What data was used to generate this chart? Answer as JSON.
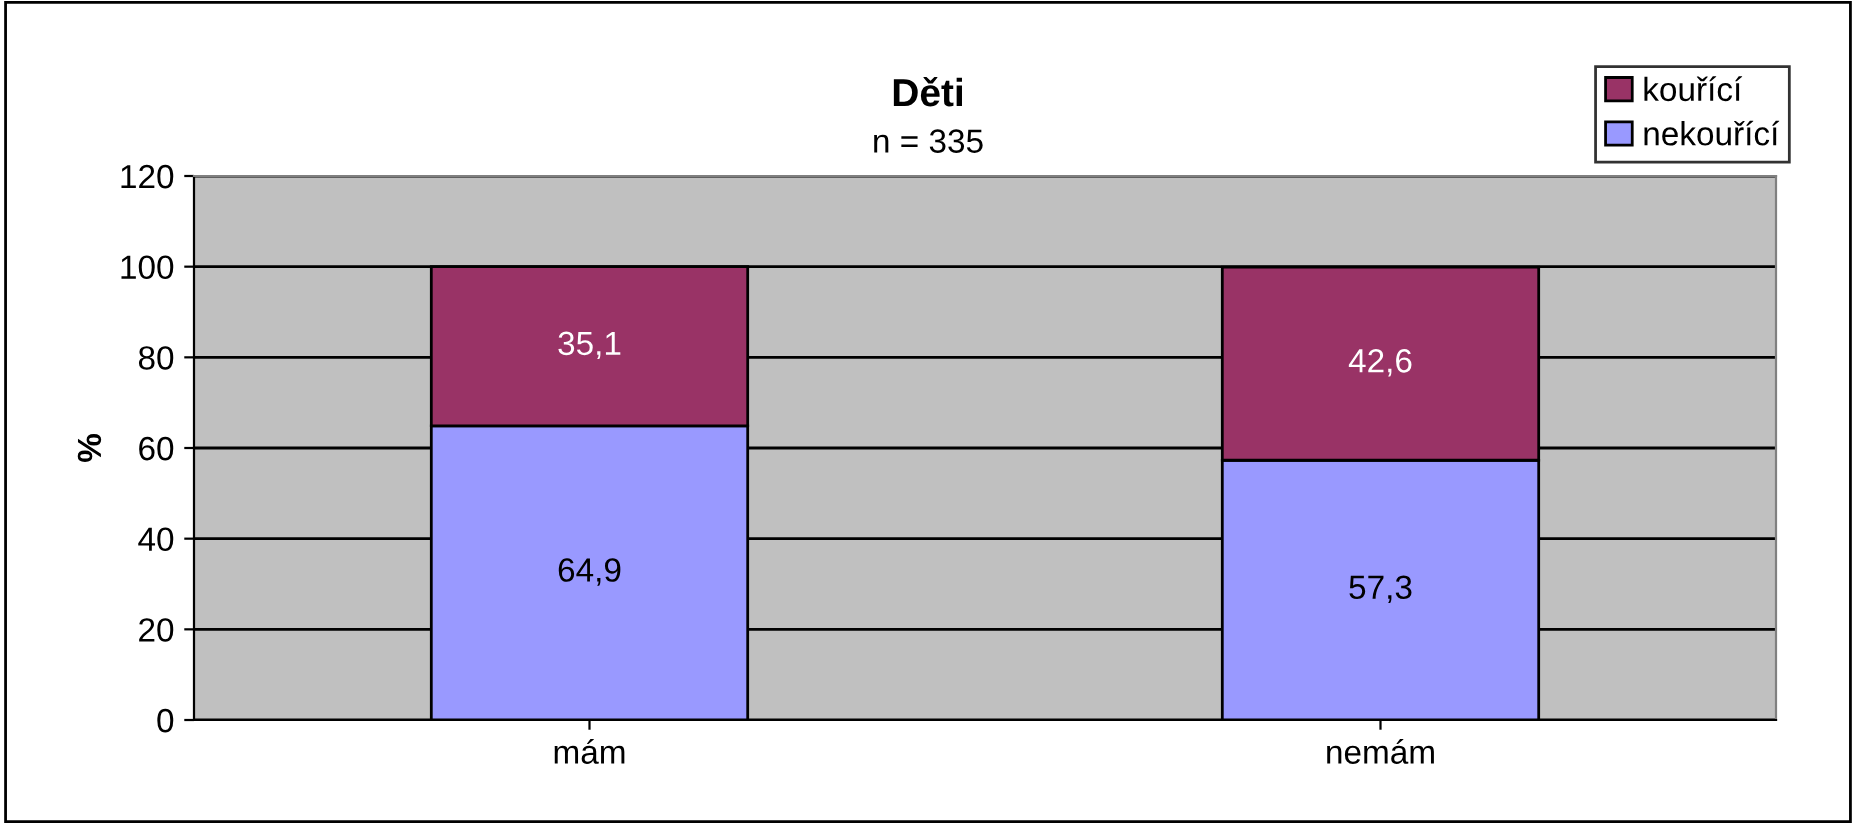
{
  "chart_data": {
    "type": "bar",
    "title": "Děti",
    "subtitle": "n = 335",
    "ylabel": "%",
    "categories": [
      "mám",
      "nemám"
    ],
    "stacked": true,
    "series": [
      {
        "name": "nekouřící",
        "color": "#9999ff",
        "values": [
          64.9,
          57.3
        ],
        "value_labels": [
          "64,9",
          "57,3"
        ]
      },
      {
        "name": "kouřící",
        "color": "#993366",
        "values": [
          35.1,
          42.6
        ],
        "value_labels": [
          "35,1",
          "42,6"
        ]
      }
    ],
    "ylim": [
      0,
      120
    ],
    "yticks": [
      0,
      20,
      40,
      60,
      80,
      100,
      120
    ],
    "grid": "y",
    "legend": "top right"
  }
}
